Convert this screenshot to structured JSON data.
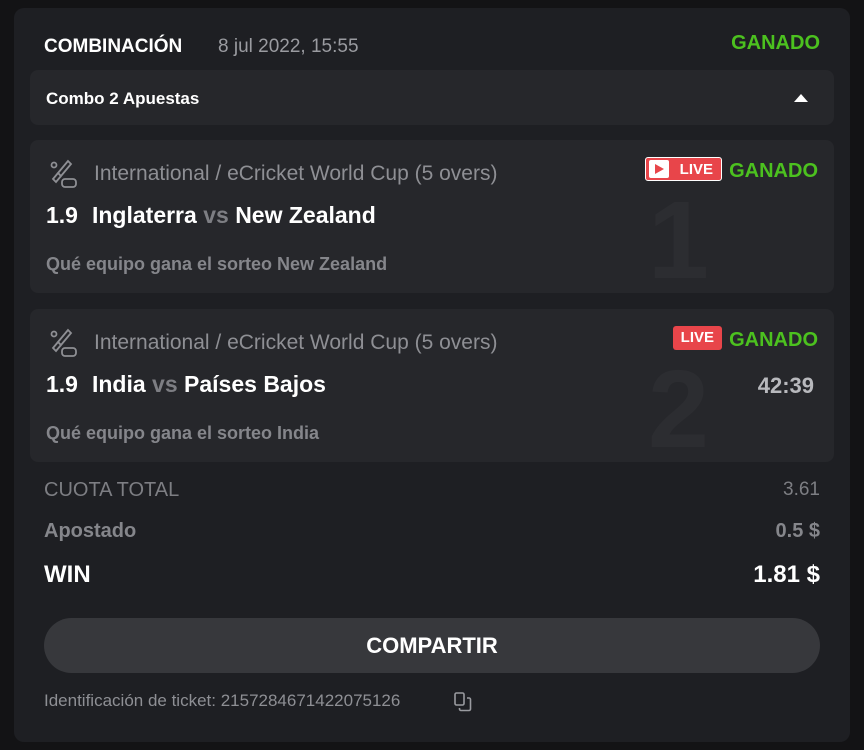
{
  "header": {
    "type": "COMBINACIÓN",
    "date": "8 jul 2022, 15:55",
    "status": "GANADO",
    "status_color": "#4cc11f"
  },
  "combo": {
    "label": "Combo 2 Apuestas",
    "icon": "caret-up-icon"
  },
  "bets": [
    {
      "index": "1",
      "league": "International / eCricket World Cup (5 overs)",
      "live": "LIVE",
      "status": "GANADO",
      "odd": "1.9",
      "home": "Inglaterra",
      "vs": "vs",
      "away": "New Zealand",
      "pick": "Qué equipo gana el sorteo New Zealand"
    },
    {
      "index": "2",
      "league": "International / eCricket World Cup (5 overs)",
      "live": "LIVE",
      "status": "GANADO",
      "odd": "1.9",
      "home": "India",
      "vs": "vs",
      "away": "Países Bajos",
      "pick": "Qué equipo gana el sorteo India",
      "timer": "42:39"
    }
  ],
  "totals": {
    "odds_label": "CUOTA TOTAL",
    "odds_value": "3.61",
    "stake_label": "Apostado",
    "stake_value": "0.5 $",
    "win_label": "WIN",
    "win_value": "1.81 $"
  },
  "share_label": "COMPARTIR",
  "ticket": {
    "label": "Identificación de ticket: 2157284671422075126"
  },
  "colors": {
    "live": "#e8454a",
    "background": "#1e1f23"
  }
}
